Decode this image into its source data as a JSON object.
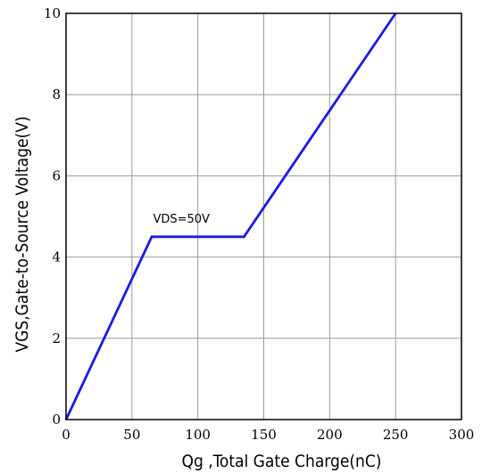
{
  "chart_data": {
    "type": "line",
    "xlabel": "Qg ,Total Gate Charge(nC)",
    "ylabel": "VGS,Gate-to-Source Voltage(V)",
    "xlim": [
      0,
      300
    ],
    "ylim": [
      0,
      10
    ],
    "xticks": [
      0,
      50,
      100,
      150,
      200,
      250,
      300
    ],
    "yticks": [
      0,
      2,
      4,
      6,
      8,
      10
    ],
    "grid": true,
    "series": [
      {
        "x": [
          0,
          65,
          135,
          250
        ],
        "y": [
          0,
          4.5,
          4.5,
          10
        ],
        "color": "#1a1ae6"
      }
    ],
    "annotations": [
      {
        "text": "VDS=50V",
        "x": 66,
        "y": 4.85
      }
    ]
  }
}
